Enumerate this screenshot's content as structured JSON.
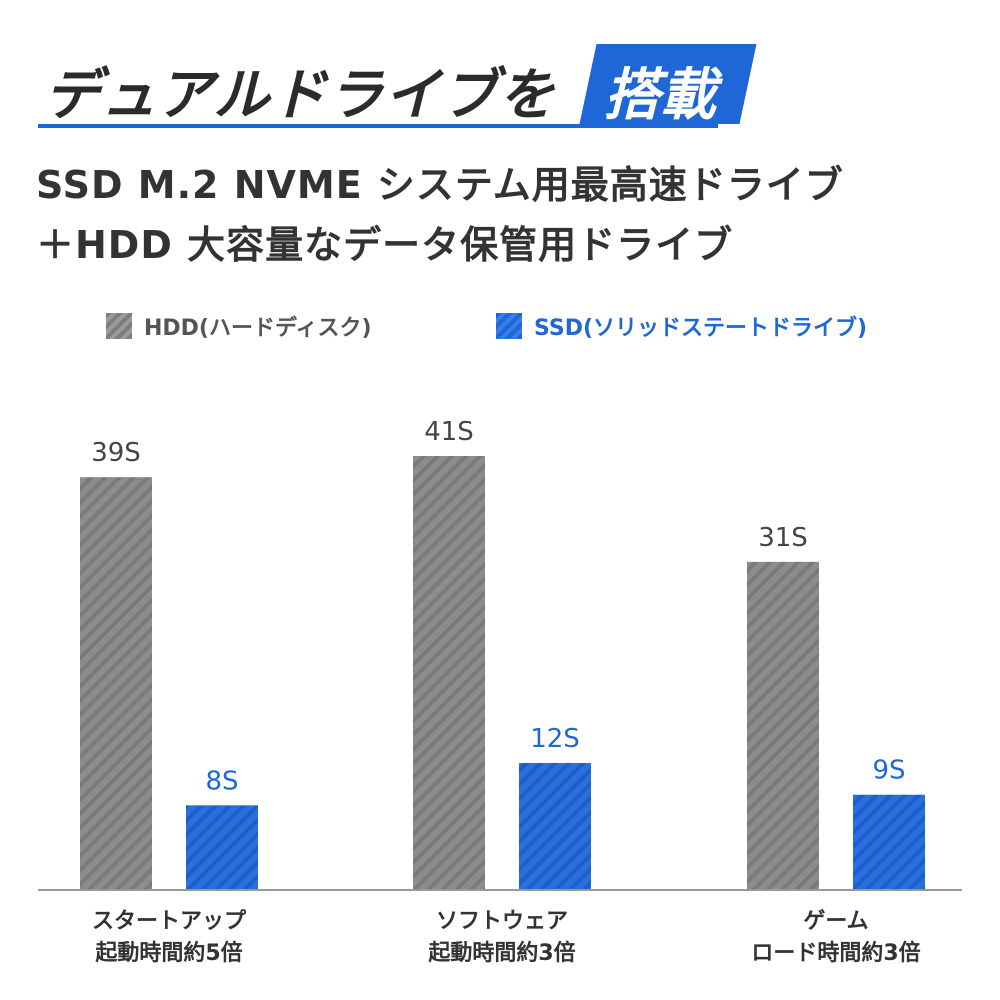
{
  "header": {
    "title_main": "デュアルドライブを",
    "title_highlight": "搭載",
    "subtitle_line1": "SSD M.2 NVME システム用最高速ドライブ",
    "subtitle_line2": "＋HDD 大容量なデータ保管用ドライブ"
  },
  "colors": {
    "hdd": "#8a8a8a",
    "ssd": "#1f67d6",
    "ssd_label": "#1f67d6",
    "hdd_label": "#444444",
    "axis": "#999999"
  },
  "chart_data": {
    "type": "bar",
    "title": "",
    "xlabel": "",
    "ylabel": "",
    "ylim": [
      0,
      45
    ],
    "grid": false,
    "legend_position": "top",
    "categories": [
      {
        "line1": "スタートアップ",
        "line2": "起動時間約5倍"
      },
      {
        "line1": "ソフトウェア",
        "line2": "起動時間約3倍"
      },
      {
        "line1": "ゲーム",
        "line2": "ロード時間約3倍"
      }
    ],
    "series": [
      {
        "name": "HDD(ハードディスク)",
        "values": [
          39,
          41,
          31
        ],
        "labels": [
          "39S",
          "41S",
          "31S"
        ]
      },
      {
        "name": "SSD(ソリッドステートドライブ)",
        "values": [
          8,
          12,
          9
        ],
        "labels": [
          "8S",
          "12S",
          "9S"
        ]
      }
    ]
  }
}
